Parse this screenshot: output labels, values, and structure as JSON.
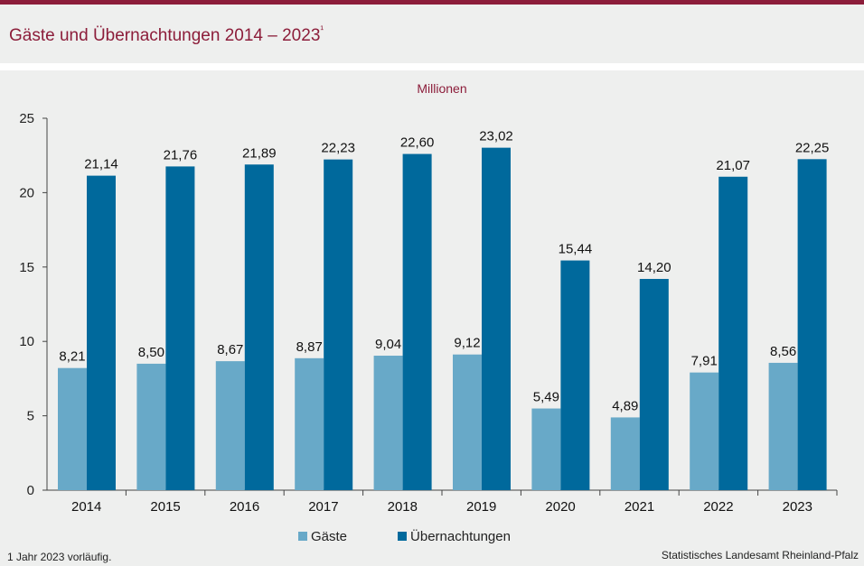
{
  "header": {
    "title": "Gäste und Übernachtungen 2014 – 2023",
    "title_note": "¹"
  },
  "footer": {
    "footnote": "1 Jahr  2023  vorläufig.",
    "source": "Statistisches Landesamt  Rheinland-Pfalz"
  },
  "colors": {
    "brand": "#8c1d3a",
    "gaeste": "#68a9c8",
    "uebernachtungen": "#00699c"
  },
  "chart_data": {
    "type": "bar",
    "unit_label": "Millionen",
    "categories": [
      "2014",
      "2015",
      "2016",
      "2017",
      "2018",
      "2019",
      "2020",
      "2021",
      "2022",
      "2023"
    ],
    "series": [
      {
        "name": "Gäste",
        "values": [
          8.21,
          8.5,
          8.67,
          8.87,
          9.04,
          9.12,
          5.49,
          4.89,
          7.91,
          8.56
        ],
        "labels": [
          "8,21",
          "8,50",
          "8,67",
          "8,87",
          "9,04",
          "9,12",
          "5,49",
          "4,89",
          "7,91",
          "8,56"
        ]
      },
      {
        "name": "Übernachtungen",
        "values": [
          21.14,
          21.76,
          21.89,
          22.23,
          22.6,
          23.02,
          15.44,
          14.2,
          21.07,
          22.25
        ],
        "labels": [
          "21,14",
          "21,76",
          "21,89",
          "22,23",
          "22,60",
          "23,02",
          "15,44",
          "14,20",
          "21,07",
          "22,25"
        ]
      }
    ],
    "ylim": [
      0,
      25
    ],
    "yticks": [
      0,
      5,
      10,
      15,
      20,
      25
    ],
    "grid": false,
    "legend_position": "bottom"
  }
}
